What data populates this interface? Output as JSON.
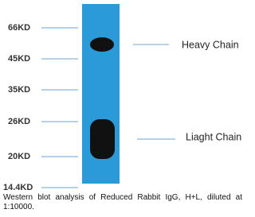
{
  "markers": [
    "66KD",
    "45KD",
    "35KD",
    "26KD",
    "20KD",
    "14.4KD"
  ],
  "bands": [
    {
      "label": "Heavy Chain"
    },
    {
      "label": "Liaght Chain"
    }
  ],
  "caption": "Western blot analysis of Reduced Rabbit IgG, H+L, diluted at 1:10000."
}
